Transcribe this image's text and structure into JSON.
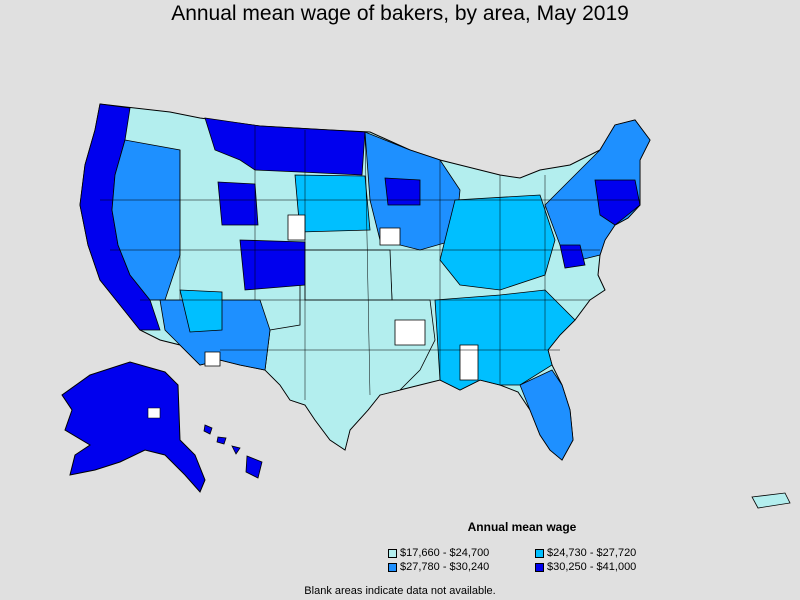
{
  "title": "Annual mean wage of bakers, by area, May 2019",
  "legend": {
    "title": "Annual mean wage",
    "items": [
      {
        "label": "$17,660 - $24,700",
        "color": "#b3eeee"
      },
      {
        "label": "$24,730 - $27,720",
        "color": "#00bfff"
      },
      {
        "label": "$27,780 - $30,240",
        "color": "#1e90ff"
      },
      {
        "label": "$30,250 - $41,000",
        "color": "#0000ee"
      }
    ]
  },
  "footnote": "Blank areas indicate data not available.",
  "colors": {
    "background": "#e0e0e0",
    "border": "#000000",
    "no_data": "#ffffff"
  }
}
